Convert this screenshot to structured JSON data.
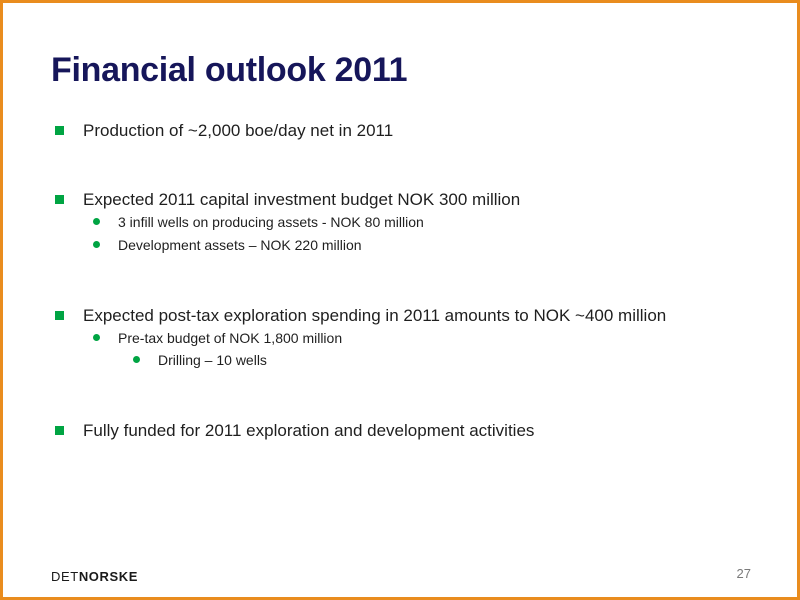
{
  "slide": {
    "title": "Financial outlook 2011",
    "bullets": {
      "production": "Production of ~2,000 boe/day net in 2011",
      "capex": "Expected 2011 capital investment budget NOK 300 million",
      "capex_infill": "3 infill wells on producing assets - NOK 80 million",
      "capex_development": "Development assets – NOK 220 million",
      "exploration": "Expected post-tax exploration spending in 2011 amounts to NOK ~400 million",
      "exploration_pretax": "Pre-tax budget of NOK 1,800 million",
      "exploration_drilling": "Drilling – 10 wells",
      "funding": "Fully funded for 2011 exploration and development activities"
    },
    "logo": {
      "light": "DET",
      "bold": "NORSKE"
    },
    "page_number": "27"
  },
  "colors": {
    "frame": "#e98c1e",
    "title": "#16165a",
    "bullet_marker": "#00a443",
    "text": "#1f1f1f"
  }
}
